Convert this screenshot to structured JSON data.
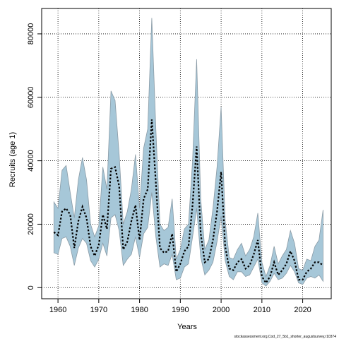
{
  "chart_data": {
    "type": "line",
    "xlabel": "Years",
    "ylabel": "Recruits (age 1)",
    "source_note": "stockassessment.org,Cod_27_5b1_shorter_augustsurvey,r10374",
    "xlim": [
      1956,
      2027
    ],
    "ylim": [
      -3500,
      88000
    ],
    "xticks": [
      1960,
      1970,
      1980,
      1990,
      2000,
      2010,
      2020
    ],
    "yticks": [
      0,
      20000,
      40000,
      60000,
      80000
    ],
    "grid": true,
    "grid_style": "dotted",
    "colors": {
      "band_fill": "#a6c7d8",
      "band_stroke": "#8a9ba6",
      "estimate_line": "#000000",
      "grid": "#000000"
    },
    "x": [
      1959,
      1960,
      1961,
      1962,
      1963,
      1964,
      1965,
      1966,
      1967,
      1968,
      1969,
      1970,
      1971,
      1972,
      1973,
      1974,
      1975,
      1976,
      1977,
      1978,
      1979,
      1980,
      1981,
      1982,
      1983,
      1984,
      1985,
      1986,
      1987,
      1988,
      1989,
      1990,
      1991,
      1992,
      1993,
      1994,
      1995,
      1996,
      1997,
      1998,
      1999,
      2000,
      2001,
      2002,
      2003,
      2004,
      2005,
      2006,
      2007,
      2008,
      2009,
      2010,
      2011,
      2012,
      2013,
      2014,
      2015,
      2016,
      2017,
      2018,
      2019,
      2020,
      2021,
      2022,
      2023,
      2024,
      2025
    ],
    "series": [
      {
        "role": "estimate",
        "values": [
          17500,
          16500,
          24000,
          25000,
          23000,
          12500,
          21000,
          25500,
          22000,
          13000,
          10000,
          13500,
          23000,
          18500,
          37500,
          38000,
          32000,
          12000,
          14500,
          21000,
          26000,
          15000,
          28000,
          31000,
          53000,
          33000,
          12500,
          11000,
          11500,
          17000,
          5000,
          7500,
          11500,
          13000,
          26000,
          44500,
          17000,
          8000,
          9000,
          15000,
          24000,
          36500,
          13000,
          6000,
          5500,
          8000,
          9000,
          6000,
          7000,
          10500,
          15000,
          3500,
          1500,
          3500,
          8000,
          4000,
          5500,
          7500,
          11500,
          8500,
          2500,
          2500,
          5000,
          6000,
          8000,
          8000,
          7000
        ]
      },
      {
        "role": "upper_95",
        "values": [
          27000,
          25000,
          37000,
          38500,
          30000,
          22000,
          34000,
          41000,
          34000,
          20000,
          16000,
          19500,
          38000,
          31000,
          62000,
          59000,
          42000,
          20000,
          24000,
          31000,
          42000,
          25000,
          44000,
          50000,
          85000,
          50000,
          20000,
          18000,
          19000,
          28000,
          9000,
          12000,
          18500,
          20000,
          40000,
          72000,
          28000,
          12000,
          15000,
          25000,
          38000,
          57000,
          21000,
          9500,
          9000,
          12000,
          14000,
          10000,
          12000,
          16000,
          23500,
          8000,
          3500,
          7000,
          13000,
          7500,
          10000,
          12000,
          18000,
          14000,
          6000,
          5500,
          9000,
          8500,
          13000,
          15000,
          24500
        ]
      },
      {
        "role": "lower_95",
        "values": [
          11000,
          10500,
          15500,
          16000,
          13000,
          7000,
          12500,
          15500,
          14000,
          8500,
          6500,
          9000,
          14000,
          10000,
          22000,
          23000,
          18000,
          7000,
          9000,
          10500,
          16000,
          9500,
          17000,
          19000,
          30000,
          16000,
          6500,
          7500,
          7000,
          10500,
          2500,
          3000,
          6500,
          7500,
          16000,
          25000,
          9500,
          4000,
          5500,
          8000,
          14500,
          22500,
          8500,
          3500,
          2500,
          5000,
          5000,
          3500,
          4000,
          6500,
          9000,
          1500,
          500,
          2000,
          4500,
          2500,
          3000,
          4500,
          7000,
          5000,
          1500,
          1000,
          3000,
          3500,
          3000,
          4000,
          2000
        ]
      }
    ]
  }
}
